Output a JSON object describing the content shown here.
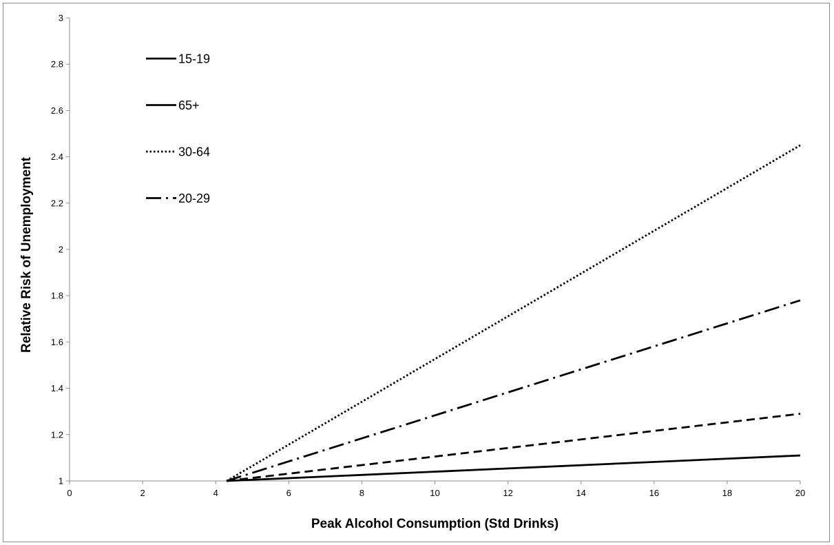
{
  "chart_data": {
    "type": "line",
    "title": "",
    "xlabel": "Peak Alcohol Consumption (Std Drinks)",
    "ylabel": "Relative Risk of Unemployment",
    "xlim": [
      0,
      20
    ],
    "ylim": [
      1,
      3
    ],
    "x_ticks": [
      "0",
      "2",
      "4",
      "6",
      "8",
      "10",
      "12",
      "14",
      "16",
      "18",
      "20"
    ],
    "y_ticks": [
      "1",
      "1.2",
      "1.4",
      "1.6",
      "1.8",
      "2",
      "2.2",
      "2.4",
      "2.6",
      "2.8",
      "3"
    ],
    "grid": false,
    "legend_position": "top-left",
    "series": [
      {
        "name": "15-19",
        "style": "solid",
        "x": [
          4.3,
          20
        ],
        "y": [
          1.0,
          1.11
        ]
      },
      {
        "name": "65+",
        "style": "dashed",
        "x": [
          4.3,
          20
        ],
        "y": [
          1.0,
          1.29
        ]
      },
      {
        "name": "30-64",
        "style": "dotted",
        "x": [
          4.3,
          20
        ],
        "y": [
          1.0,
          2.45
        ]
      },
      {
        "name": "20-29",
        "style": "dashdot",
        "x": [
          4.3,
          20
        ],
        "y": [
          1.0,
          1.78
        ]
      }
    ],
    "legend_display": [
      {
        "label": "15-19",
        "style": "solid"
      },
      {
        "label": "65+",
        "style": "solid"
      },
      {
        "label": "30-64",
        "style": "dotted"
      },
      {
        "label": "20-29",
        "style": "dashdot"
      }
    ],
    "colors": {
      "line": "#000000",
      "axis": "#8c8c8c",
      "frame": "#8c8c8c"
    }
  }
}
